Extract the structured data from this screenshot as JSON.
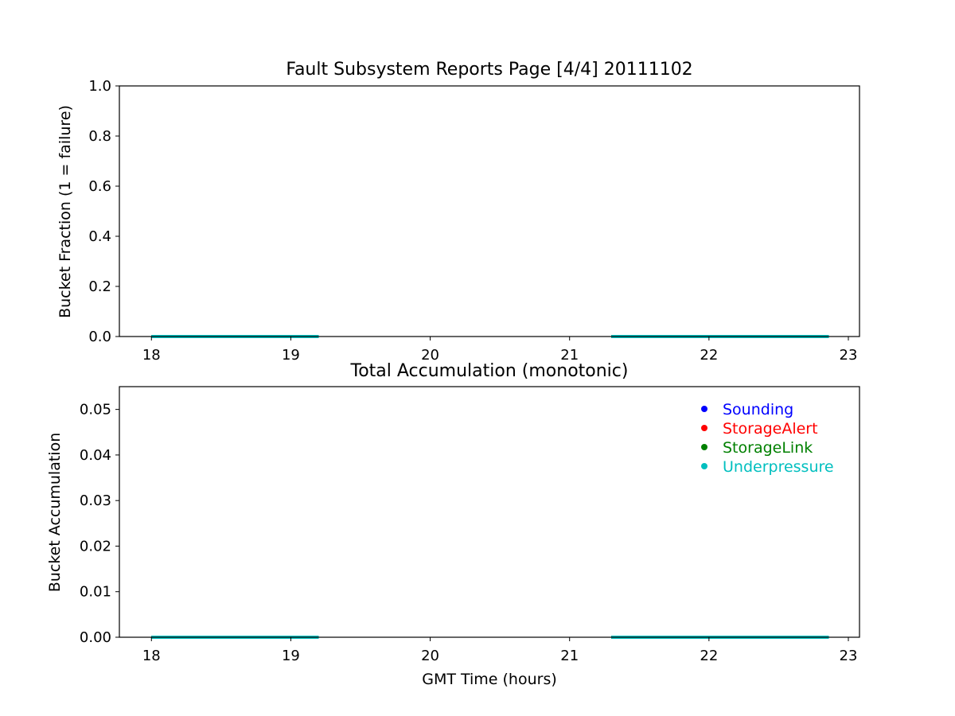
{
  "colors": {
    "background": "#ffffff",
    "axes": "#000000",
    "sounding": "#0000ff",
    "storagealert": "#ff0000",
    "storagelink": "#008000",
    "underpressure": "#00bfbf"
  },
  "chart_data": [
    {
      "type": "line",
      "title": "Fault Subsystem Reports Page [4/4] 20111102",
      "xlabel": "",
      "ylabel": "Bucket Fraction (1 = failure)",
      "xlim": [
        17.77,
        23.08
      ],
      "ylim": [
        0,
        1.0
      ],
      "xticks": [
        "18",
        "19",
        "20",
        "21",
        "22",
        "23"
      ],
      "yticks": [
        "0.0",
        "0.2",
        "0.4",
        "0.6",
        "0.8",
        "1.0"
      ],
      "grid": false,
      "legend": "none",
      "series": [
        {
          "name": "Sounding",
          "color": "#0000ff",
          "segments": [
            {
              "x": [
                18.0,
                19.2
              ],
              "y": [
                0,
                0
              ]
            },
            {
              "x": [
                21.3,
                22.86
              ],
              "y": [
                0,
                0
              ]
            }
          ]
        },
        {
          "name": "StorageAlert",
          "color": "#ff0000",
          "segments": [
            {
              "x": [
                18.0,
                19.2
              ],
              "y": [
                0,
                0
              ]
            },
            {
              "x": [
                21.3,
                22.86
              ],
              "y": [
                0,
                0
              ]
            }
          ]
        },
        {
          "name": "StorageLink",
          "color": "#008000",
          "segments": [
            {
              "x": [
                18.0,
                19.2
              ],
              "y": [
                0,
                0
              ]
            },
            {
              "x": [
                21.3,
                22.86
              ],
              "y": [
                0,
                0
              ]
            }
          ]
        },
        {
          "name": "Underpressure",
          "color": "#00bfbf",
          "segments": [
            {
              "x": [
                18.0,
                19.2
              ],
              "y": [
                0,
                0
              ]
            },
            {
              "x": [
                21.3,
                22.86
              ],
              "y": [
                0,
                0
              ]
            }
          ]
        }
      ]
    },
    {
      "type": "line",
      "title": "Total Accumulation (monotonic)",
      "xlabel": "GMT Time (hours)",
      "ylabel": "Bucket Accumulation",
      "xlim": [
        17.77,
        23.08
      ],
      "ylim": [
        0,
        0.055
      ],
      "xticks": [
        "18",
        "19",
        "20",
        "21",
        "22",
        "23"
      ],
      "yticks": [
        "0.00",
        "0.01",
        "0.02",
        "0.03",
        "0.04",
        "0.05"
      ],
      "grid": false,
      "legend": "top-right",
      "series": [
        {
          "name": "Sounding",
          "color": "#0000ff",
          "segments": [
            {
              "x": [
                18.0,
                19.2
              ],
              "y": [
                0,
                0
              ]
            },
            {
              "x": [
                21.3,
                22.86
              ],
              "y": [
                0,
                0
              ]
            }
          ]
        },
        {
          "name": "StorageAlert",
          "color": "#ff0000",
          "segments": [
            {
              "x": [
                18.0,
                19.2
              ],
              "y": [
                0,
                0
              ]
            },
            {
              "x": [
                21.3,
                22.86
              ],
              "y": [
                0,
                0
              ]
            }
          ]
        },
        {
          "name": "StorageLink",
          "color": "#008000",
          "segments": [
            {
              "x": [
                18.0,
                19.2
              ],
              "y": [
                0,
                0
              ]
            },
            {
              "x": [
                21.3,
                22.86
              ],
              "y": [
                0,
                0
              ]
            }
          ]
        },
        {
          "name": "Underpressure",
          "color": "#00bfbf",
          "segments": [
            {
              "x": [
                18.0,
                19.2
              ],
              "y": [
                0,
                0
              ]
            },
            {
              "x": [
                21.3,
                22.86
              ],
              "y": [
                0,
                0
              ]
            }
          ]
        }
      ]
    }
  ]
}
